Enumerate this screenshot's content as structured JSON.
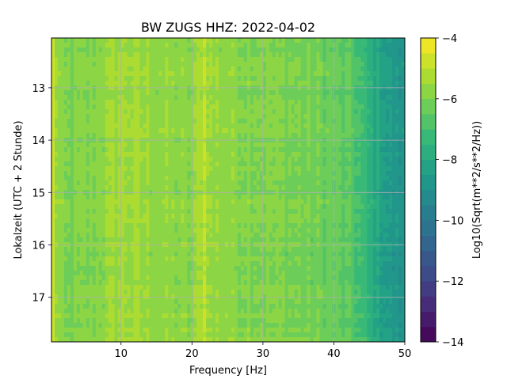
{
  "chart_data": {
    "type": "heatmap",
    "title": "BW ZUGS  HHZ: 2022-04-02",
    "xlabel": "Frequency [Hz]",
    "ylabel": "Lokalzeit (UTC + 2 Stunde)",
    "xlim": [
      0.2,
      50
    ],
    "ylim": [
      12.05,
      17.85
    ],
    "x_ticks": [
      10,
      20,
      30,
      40,
      50
    ],
    "y_ticks": [
      13,
      14,
      15,
      16,
      17
    ],
    "grid": true,
    "colorbar": {
      "label": "Log10(Sqrt(m**2/s**2/Hz))",
      "range": [
        -14,
        -4
      ],
      "ticks": [
        -4,
        -6,
        -8,
        -10,
        -12,
        -14
      ],
      "colormap": "viridis",
      "levels": 20
    },
    "spectrum_profile": {
      "frequency_hz": [
        0.2,
        1,
        2,
        4,
        6,
        8,
        10,
        12,
        14,
        16,
        18,
        20,
        21.8,
        22.5,
        24,
        26,
        28,
        30,
        32,
        34,
        36,
        38,
        40,
        42,
        43,
        44,
        45,
        46,
        47,
        48,
        49,
        50
      ],
      "log10_amplitude": [
        -4.6,
        -5.6,
        -6.1,
        -6.0,
        -5.9,
        -5.6,
        -5.4,
        -5.5,
        -5.6,
        -5.7,
        -5.8,
        -5.9,
        -4.9,
        -5.6,
        -5.6,
        -5.8,
        -5.8,
        -5.9,
        -6.0,
        -6.0,
        -6.1,
        -6.2,
        -6.4,
        -6.6,
        -6.8,
        -7.2,
        -7.7,
        -8.0,
        -8.3,
        -8.6,
        -8.8,
        -8.9
      ]
    }
  }
}
